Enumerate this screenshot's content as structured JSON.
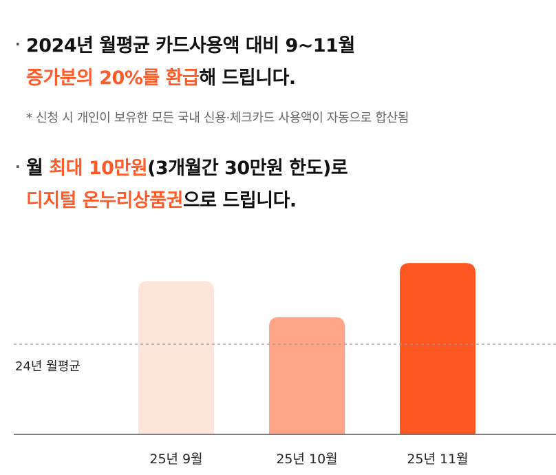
{
  "bullet1": {
    "line1": "2024년 월평균 카드사용액 대비 9~11월",
    "line2_highlight": "증가분의 20%를 환급",
    "line2_rest": "해 드립니다."
  },
  "note": "* 신청 시 개인이 보유한 모든 국내 신용·체크카드 사용액이 자동으로 합산됨",
  "bullet2": {
    "line1_pre": "월 ",
    "line1_highlight": "최대 10만원",
    "line1_rest": "(3개월간 30만원 한도)로",
    "line2_highlight": "디지털 온누리상품권",
    "line2_rest": "으로 드립니다."
  },
  "colors": {
    "accent": "#ff5a28",
    "bar1": "#fde5dc",
    "bar2": "#ffa487",
    "bar3": "#ff5722"
  },
  "chart_data": {
    "type": "bar",
    "categories": [
      "25년 9월",
      "25년 10월",
      "25년 11월"
    ],
    "values": [
      1.7,
      1.3,
      1.9
    ],
    "ylim": [
      0,
      2.0
    ],
    "reference_line": {
      "label": "24년 월평균",
      "value": 1.0
    },
    "title": "",
    "xlabel": "",
    "ylabel": "",
    "grid": false
  }
}
